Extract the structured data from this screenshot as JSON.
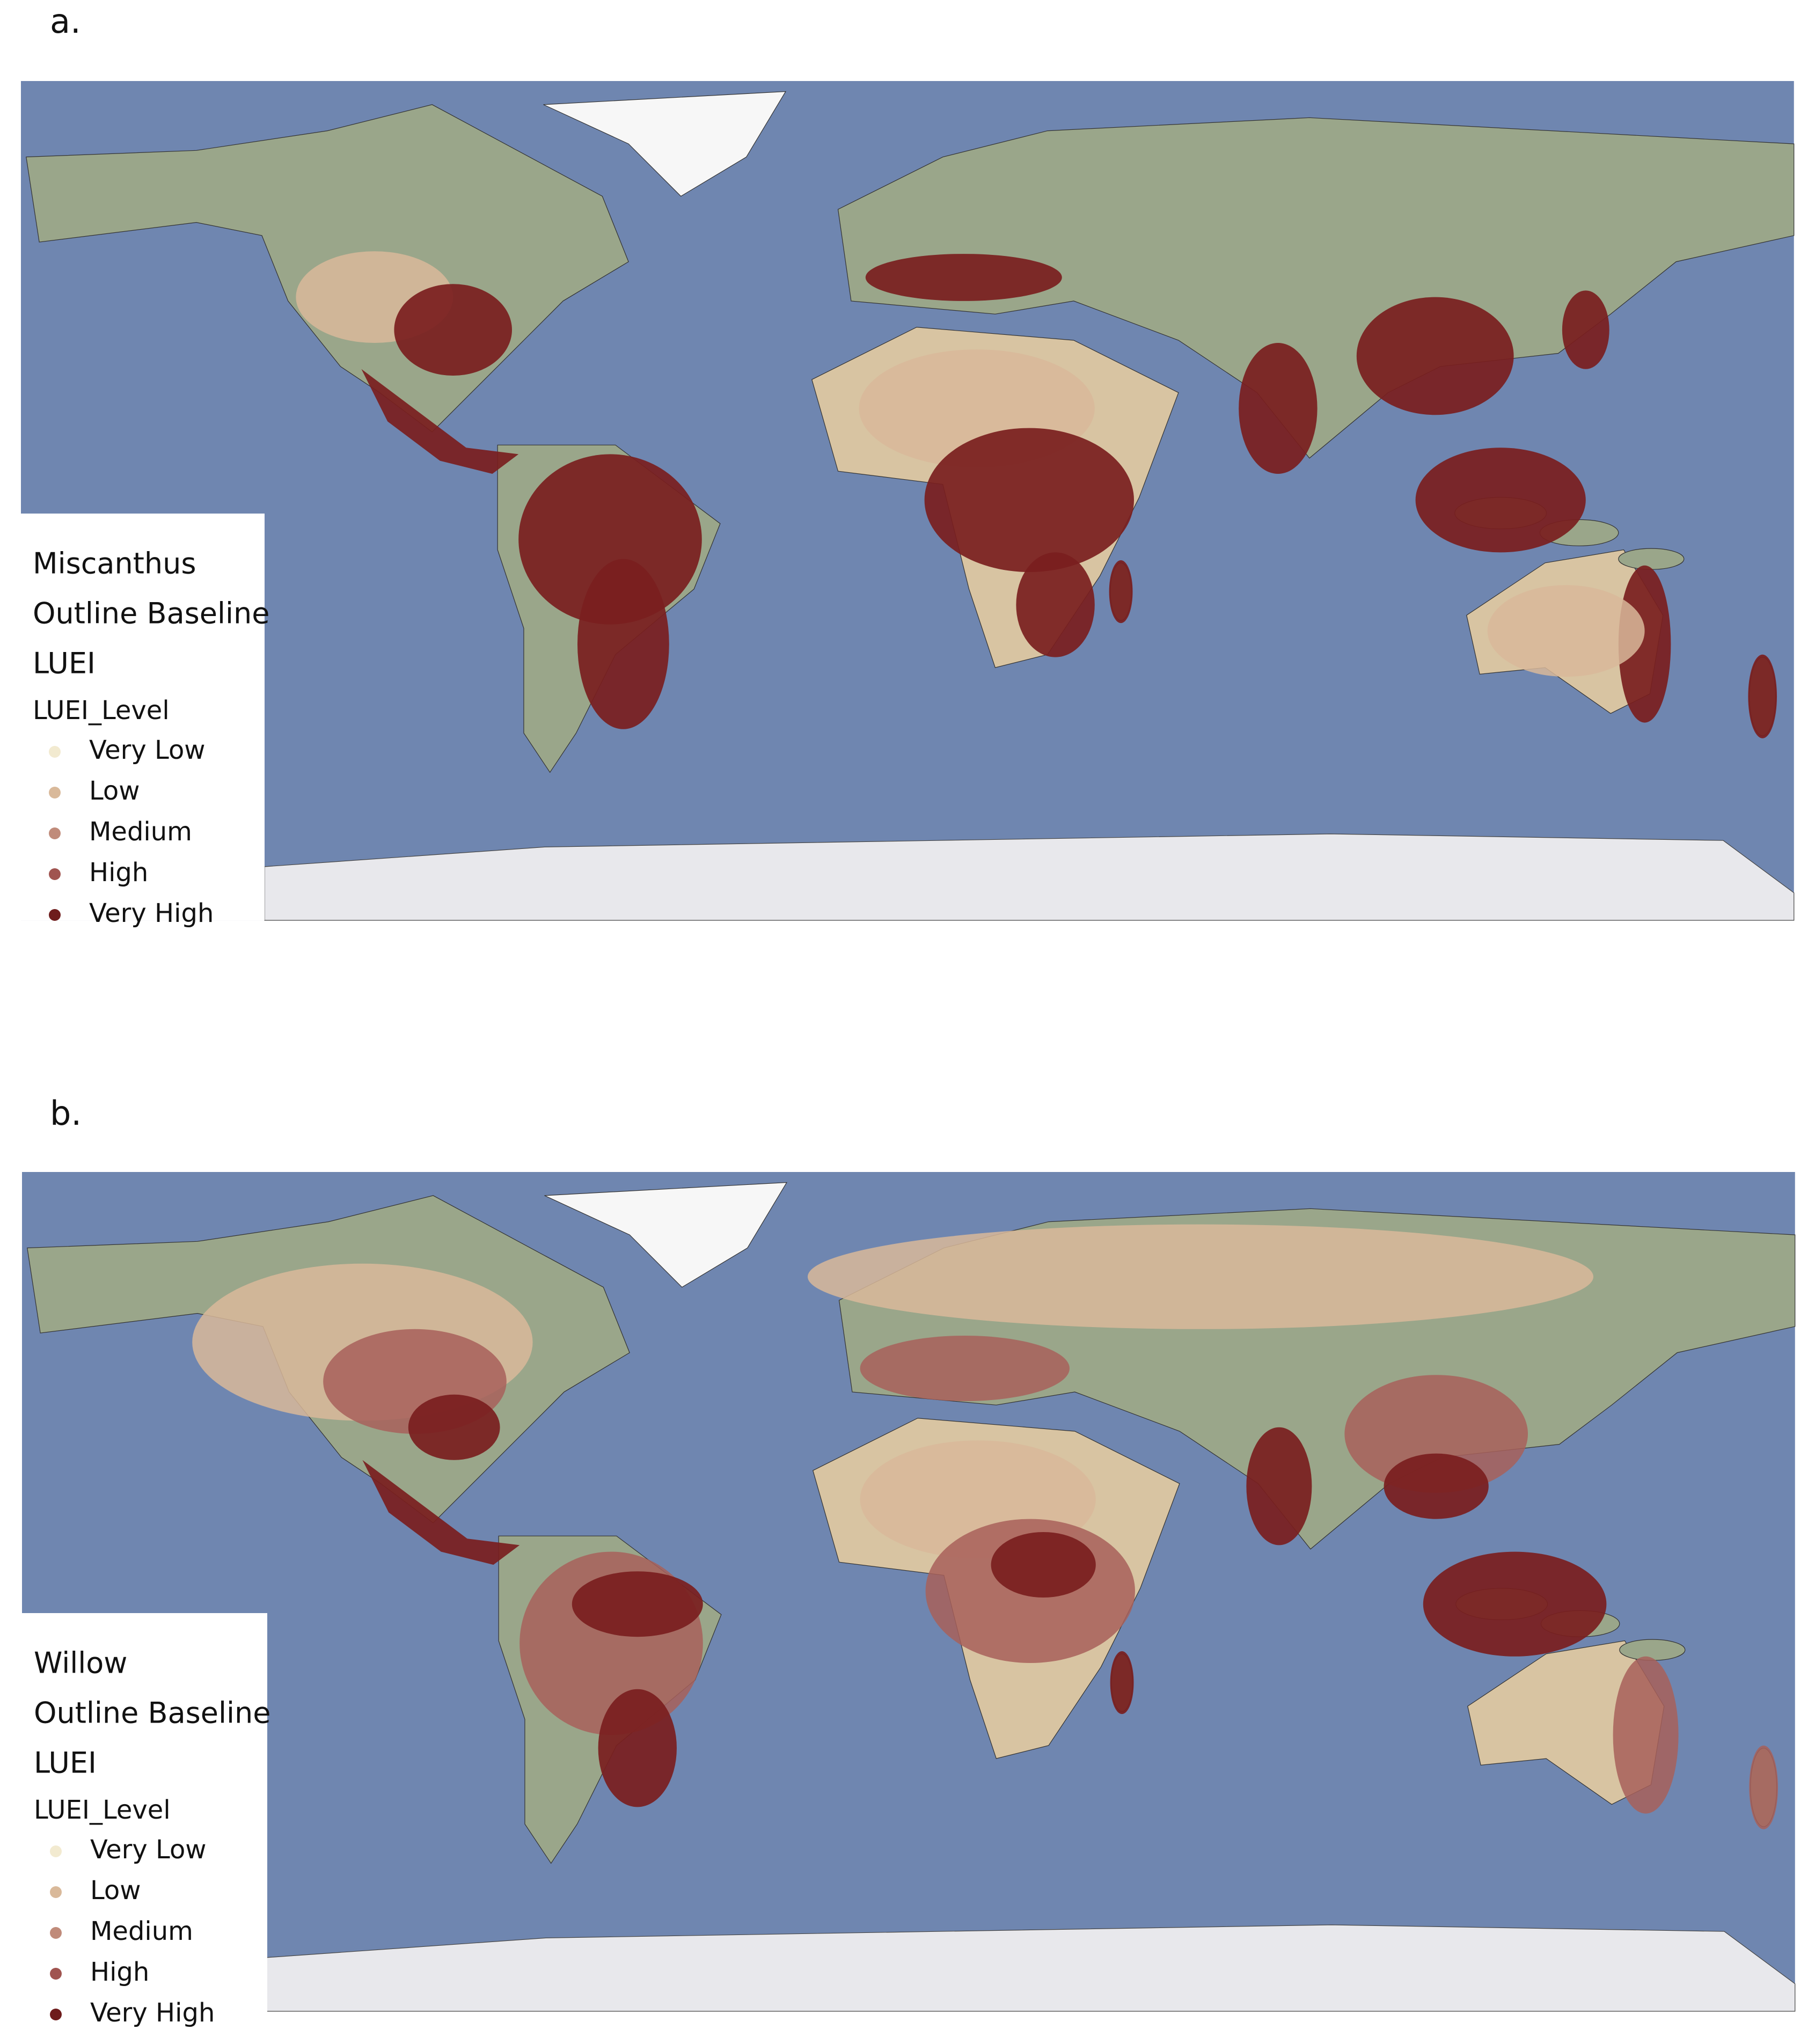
{
  "panels": [
    {
      "label": "a.",
      "legend": {
        "lines": [
          "Miscanthus",
          "Outline Baseline",
          "LUEI"
        ],
        "field": "LUEI_Level",
        "items": [
          {
            "label": "Very Low",
            "color": "#f2ead0"
          },
          {
            "label": "Low",
            "color": "#d9b99a"
          },
          {
            "label": "Medium",
            "color": "#c08b7a"
          },
          {
            "label": "High",
            "color": "#a05450"
          },
          {
            "label": "Very High",
            "color": "#6e1c1c"
          }
        ]
      }
    },
    {
      "label": "b.",
      "legend": {
        "lines": [
          "Willow",
          "Outline Baseline",
          "LUEI"
        ],
        "field": "LUEI_Level",
        "items": [
          {
            "label": "Very Low",
            "color": "#f2ead0"
          },
          {
            "label": "Low",
            "color": "#d9b99a"
          },
          {
            "label": "Medium",
            "color": "#c08b7a"
          },
          {
            "label": "High",
            "color": "#a05450"
          },
          {
            "label": "Very High",
            "color": "#6e1c1c"
          }
        ]
      }
    }
  ]
}
